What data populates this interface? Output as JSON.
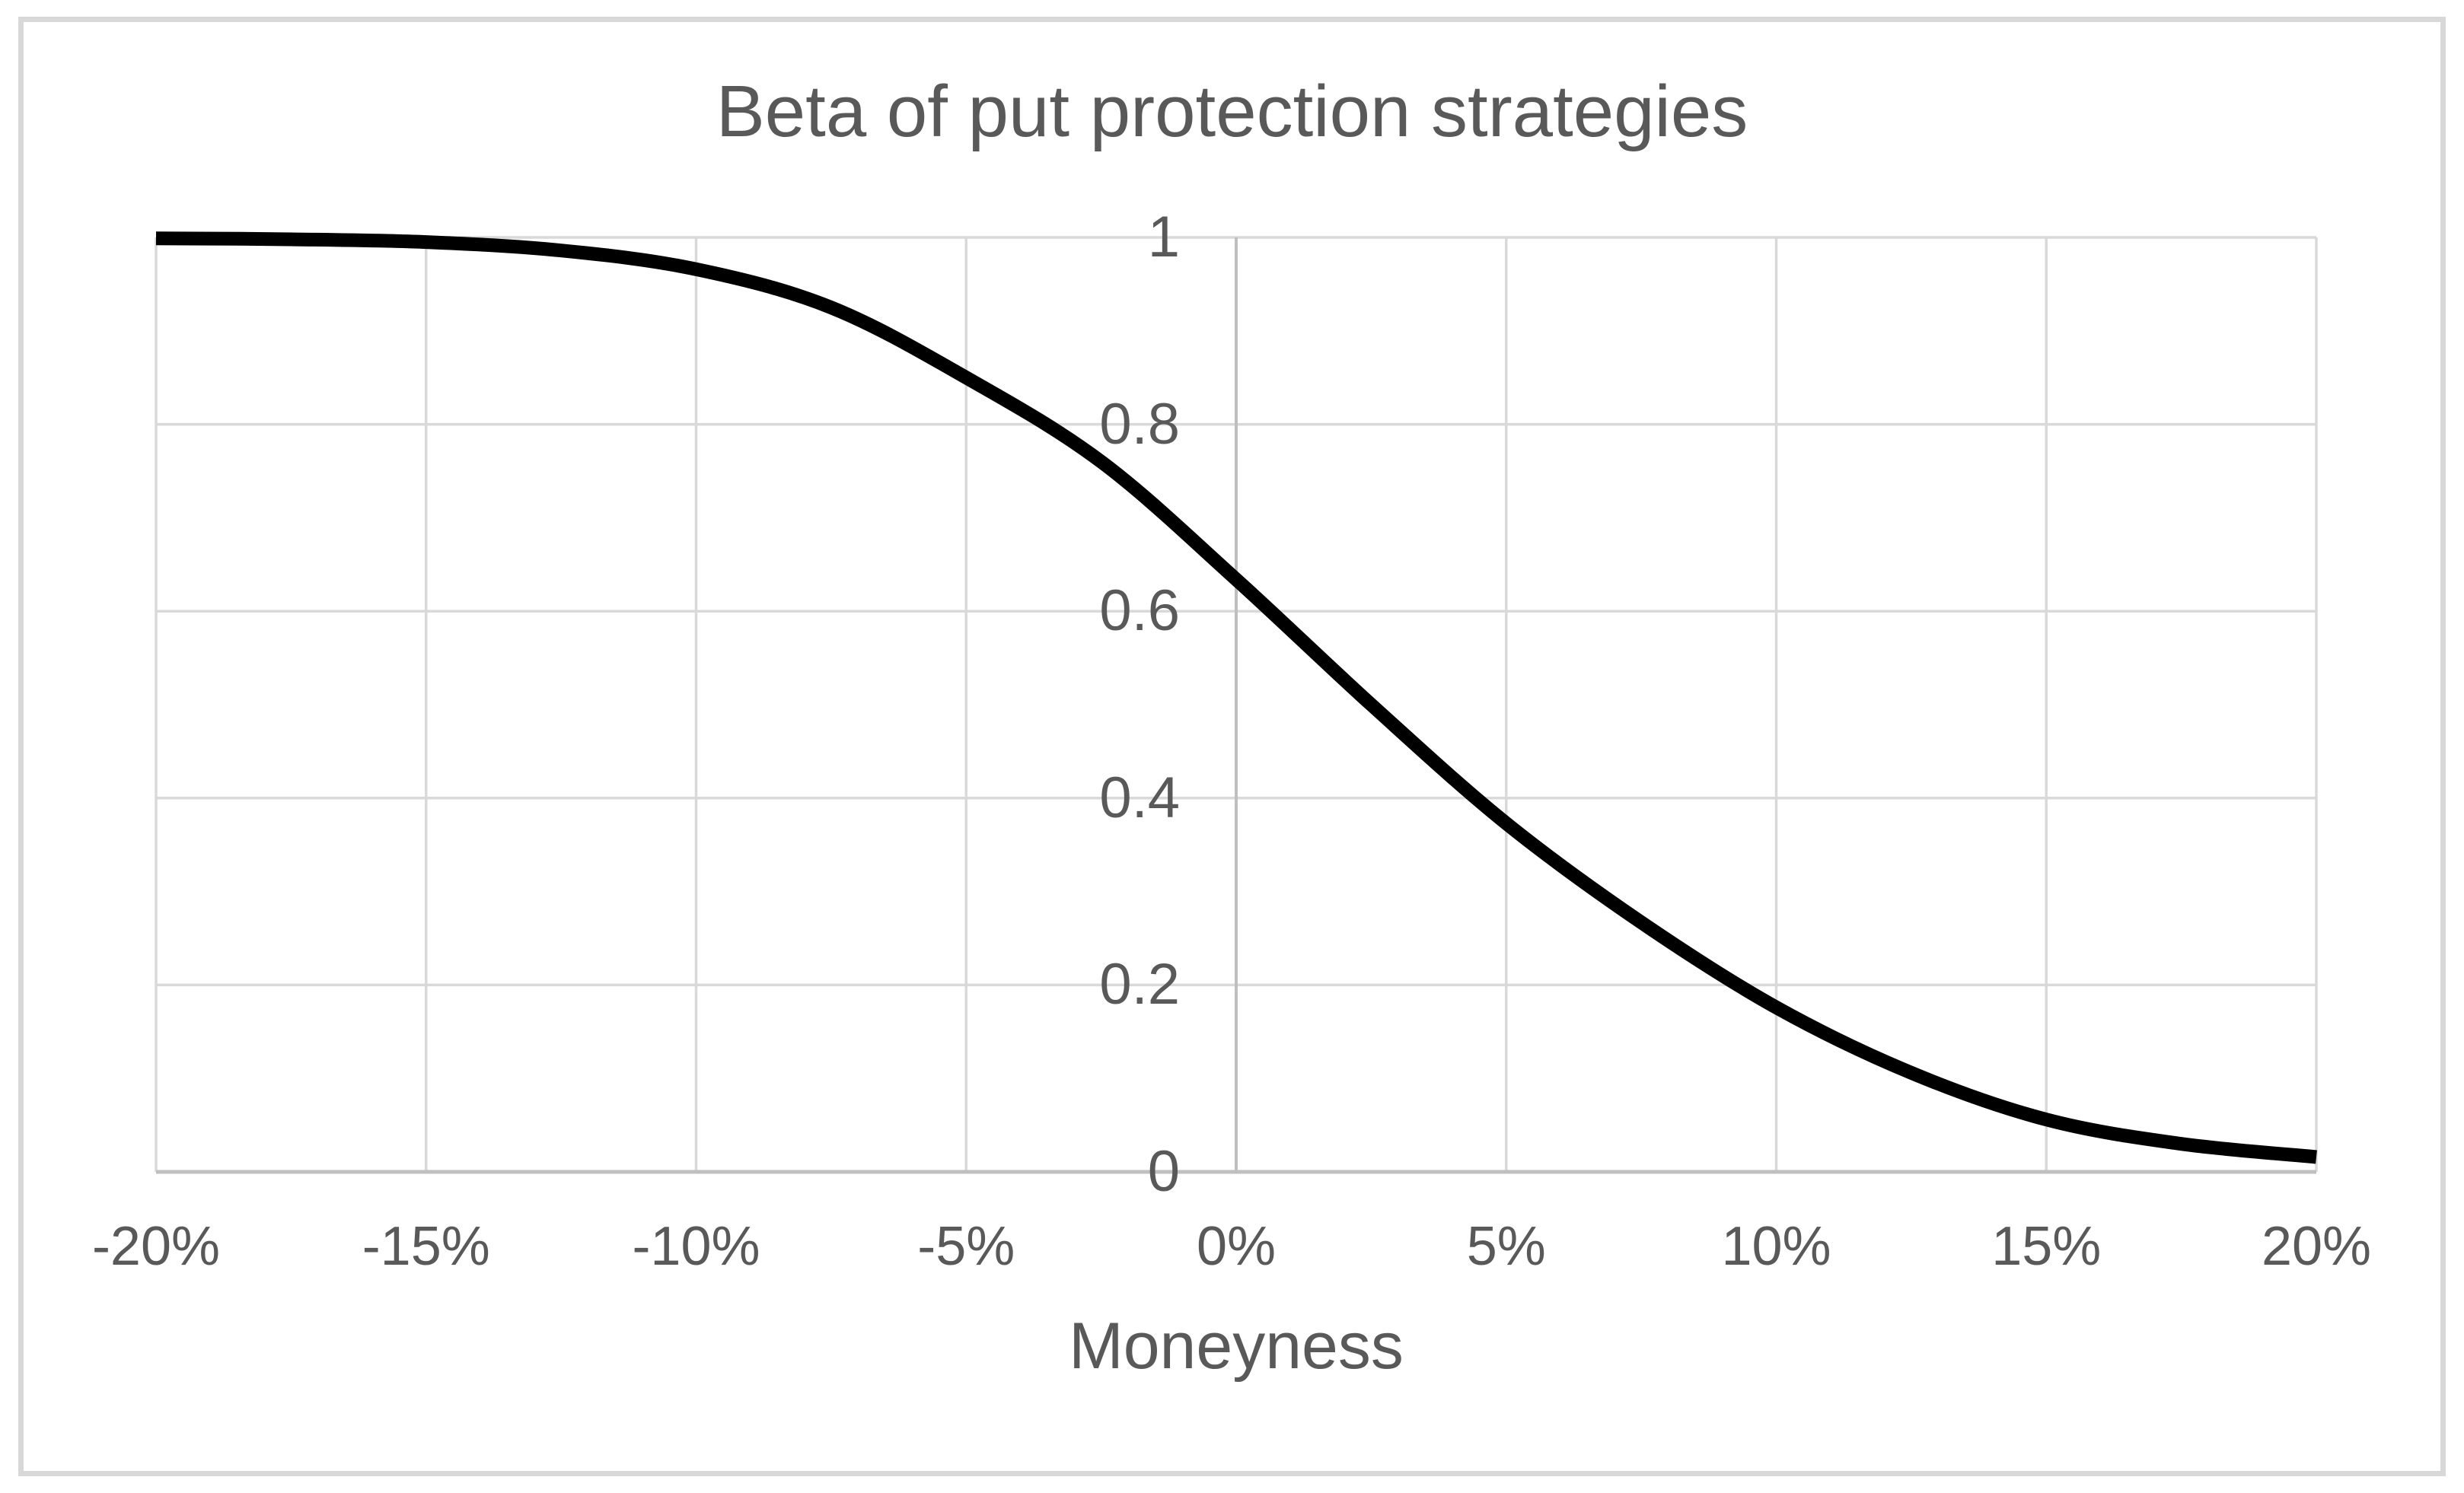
{
  "chart_data": {
    "type": "line",
    "title": "Beta of put protection strategies",
    "xlabel": "Moneyness",
    "ylabel": "",
    "xlim": [
      -20,
      20
    ],
    "ylim": [
      0,
      1
    ],
    "grid": true,
    "legend": "none",
    "axis_cross_x": 0,
    "x_tick_format": "percent",
    "x_ticks": [
      {
        "value": -20,
        "label": "-20%"
      },
      {
        "value": -15,
        "label": "-15%"
      },
      {
        "value": -10,
        "label": "-10%"
      },
      {
        "value": -5,
        "label": "-5%"
      },
      {
        "value": 0,
        "label": "0%"
      },
      {
        "value": 5,
        "label": "5%"
      },
      {
        "value": 10,
        "label": "10%"
      },
      {
        "value": 15,
        "label": "15%"
      },
      {
        "value": 20,
        "label": "20%"
      }
    ],
    "y_ticks": [
      {
        "value": 1,
        "label": "1"
      },
      {
        "value": 0.8,
        "label": "0.8"
      },
      {
        "value": 0.6,
        "label": "0.6"
      },
      {
        "value": 0.4,
        "label": "0.4"
      },
      {
        "value": 0.2,
        "label": "0.2"
      },
      {
        "value": 0,
        "label": "0"
      }
    ],
    "series": [
      {
        "x": [
          -20,
          -17.5,
          -15,
          -12.5,
          -10,
          -7.5,
          -5,
          -2.5,
          0,
          2.5,
          5,
          7.5,
          10,
          12.5,
          15,
          17.5,
          20
        ],
        "y": [
          0.999,
          0.998,
          0.995,
          0.986,
          0.966,
          0.925,
          0.85,
          0.76,
          0.634,
          0.5,
          0.373,
          0.267,
          0.176,
          0.106,
          0.056,
          0.03,
          0.016
        ]
      }
    ]
  },
  "style": {
    "background": "#FFFFFF",
    "frame_border_color": "#D8D8D8",
    "grid_color": "#D9D9D9",
    "axis_color": "#BFBFBF",
    "text_color": "#595959",
    "curve_color": "#000000"
  }
}
